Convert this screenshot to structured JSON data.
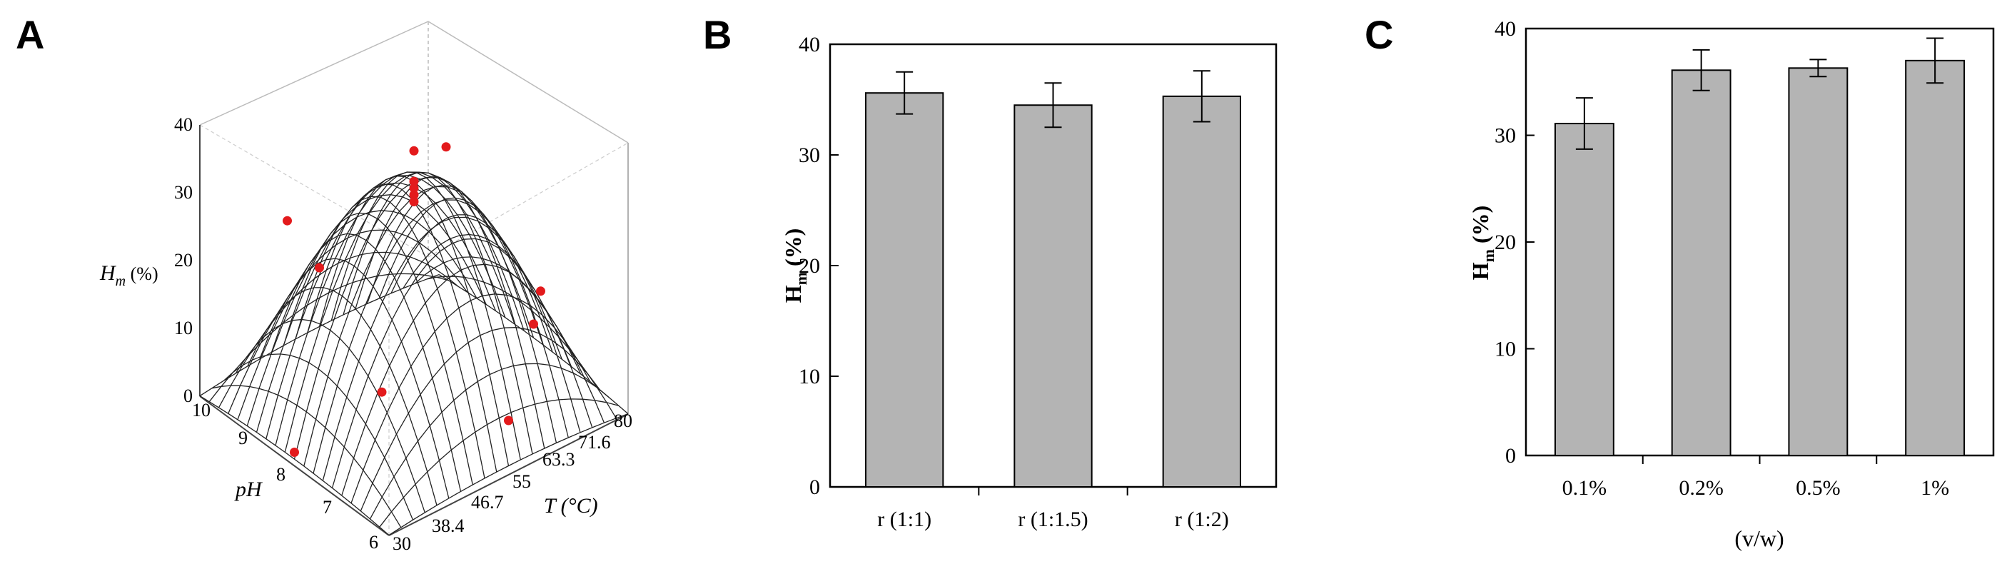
{
  "panels": {
    "a": "A",
    "b": "B",
    "c": "C"
  },
  "chart_data": [
    {
      "id": "A",
      "type": "surface3d",
      "zlabel": "H",
      "zlabel_sub": "m",
      "zlabel_unit": " (%)",
      "ylabel": "pH",
      "xlabel": "T (°C)",
      "z_ticks": [
        "0",
        "10",
        "20",
        "30",
        "40"
      ],
      "ph_ticks": [
        "10",
        "9",
        "8",
        "7",
        "6"
      ],
      "t_ticks": [
        "30",
        "38.4",
        "46.7",
        "55",
        "63.3",
        "71.6",
        "80"
      ],
      "zlim": [
        0,
        40
      ],
      "points": [
        {
          "T": 55,
          "pH": 8,
          "Hm": 37.5
        },
        {
          "T": 55,
          "pH": 8,
          "Hm": 33
        },
        {
          "T": 55,
          "pH": 8,
          "Hm": 32
        },
        {
          "T": 55,
          "pH": 8,
          "Hm": 31
        },
        {
          "T": 55,
          "pH": 8,
          "Hm": 30
        },
        {
          "T": 38.4,
          "pH": 9,
          "Hm": 28
        },
        {
          "T": 71.6,
          "pH": 9,
          "Hm": 27
        },
        {
          "T": 38.4,
          "pH": 7,
          "Hm": 13
        },
        {
          "T": 71.6,
          "pH": 7,
          "Hm": 16
        },
        {
          "T": 55,
          "pH": 10,
          "Hm": 10
        },
        {
          "T": 55,
          "pH": 6,
          "Hm": 8
        },
        {
          "T": 30,
          "pH": 8,
          "Hm": 2
        },
        {
          "T": 80,
          "pH": 8,
          "Hm": 3
        }
      ],
      "marker_color": "#e31a1c"
    },
    {
      "id": "B",
      "type": "bar",
      "ylabel": "H",
      "ylabel_sub": "m",
      "ylabel_unit": " (%)",
      "categories": [
        "r (1:1)",
        "r (1:1.5)",
        "r (1:2)"
      ],
      "values": [
        35.6,
        34.5,
        35.3
      ],
      "errors": [
        1.9,
        2.0,
        2.3
      ],
      "ylim": [
        0,
        40
      ],
      "yticks": [
        "0",
        "10",
        "20",
        "30",
        "40"
      ],
      "bar_color": "#b4b4b4"
    },
    {
      "id": "C",
      "type": "bar",
      "ylabel": "H",
      "ylabel_sub": "m",
      "ylabel_unit": " (%)",
      "xlabel": "(v/w)",
      "categories": [
        "0.1%",
        "0.2%",
        "0.5%",
        "1%"
      ],
      "values": [
        31.1,
        36.1,
        36.3,
        37.0
      ],
      "errors": [
        2.4,
        1.9,
        0.8,
        2.1
      ],
      "ylim": [
        0,
        40
      ],
      "yticks": [
        "0",
        "10",
        "20",
        "30",
        "40"
      ],
      "bar_color": "#b4b4b4"
    }
  ]
}
